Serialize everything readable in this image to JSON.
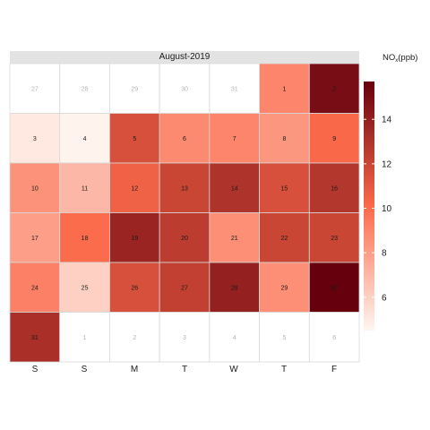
{
  "chart_data": {
    "type": "heatmap",
    "title": "August-2019",
    "legend_title_main": "NO",
    "legend_title_sub": "x",
    "legend_title_unit": "(ppb)",
    "weekdays": [
      "S",
      "S",
      "M",
      "T",
      "W",
      "T",
      "F"
    ],
    "colorbar": {
      "min": 4.5,
      "max": 15.7,
      "ticks": [
        6,
        8,
        10,
        12,
        14
      ]
    },
    "colors": {
      "low": "#fff5f0",
      "mid": "#fb6a4a",
      "high": "#67000d",
      "empty": "#ffffff",
      "grid": "#d9d9d9"
    },
    "weeks": [
      [
        {
          "label": "27",
          "value": null,
          "in_month": false
        },
        {
          "label": "28",
          "value": null,
          "in_month": false
        },
        {
          "label": "29",
          "value": null,
          "in_month": false
        },
        {
          "label": "30",
          "value": null,
          "in_month": false
        },
        {
          "label": "31",
          "value": null,
          "in_month": false
        },
        {
          "label": "1",
          "value": 9.0,
          "in_month": true
        },
        {
          "label": "2",
          "value": 15.0,
          "in_month": true
        }
      ],
      [
        {
          "label": "3",
          "value": 5.0,
          "in_month": true
        },
        {
          "label": "4",
          "value": 4.6,
          "in_month": true
        },
        {
          "label": "5",
          "value": 11.5,
          "in_month": true
        },
        {
          "label": "6",
          "value": 8.8,
          "in_month": true
        },
        {
          "label": "7",
          "value": 9.0,
          "in_month": true
        },
        {
          "label": "8",
          "value": 8.3,
          "in_month": true
        },
        {
          "label": "9",
          "value": 10.2,
          "in_month": true
        }
      ],
      [
        {
          "label": "10",
          "value": 8.5,
          "in_month": true
        },
        {
          "label": "11",
          "value": 7.0,
          "in_month": true
        },
        {
          "label": "12",
          "value": 10.5,
          "in_month": true
        },
        {
          "label": "13",
          "value": 12.0,
          "in_month": true
        },
        {
          "label": "14",
          "value": 13.0,
          "in_month": true
        },
        {
          "label": "15",
          "value": 11.5,
          "in_month": true
        },
        {
          "label": "16",
          "value": 12.8,
          "in_month": true
        }
      ],
      [
        {
          "label": "17",
          "value": 8.0,
          "in_month": true
        },
        {
          "label": "18",
          "value": 10.0,
          "in_month": true
        },
        {
          "label": "19",
          "value": 13.8,
          "in_month": true
        },
        {
          "label": "20",
          "value": 12.5,
          "in_month": true
        },
        {
          "label": "21",
          "value": 8.6,
          "in_month": true
        },
        {
          "label": "22",
          "value": 12.0,
          "in_month": true
        },
        {
          "label": "23",
          "value": 12.0,
          "in_month": true
        }
      ],
      [
        {
          "label": "24",
          "value": 9.2,
          "in_month": true
        },
        {
          "label": "25",
          "value": 6.0,
          "in_month": true
        },
        {
          "label": "26",
          "value": 11.5,
          "in_month": true
        },
        {
          "label": "27",
          "value": 12.3,
          "in_month": true
        },
        {
          "label": "28",
          "value": 14.0,
          "in_month": true
        },
        {
          "label": "29",
          "value": 8.6,
          "in_month": true
        },
        {
          "label": "30",
          "value": 15.7,
          "in_month": true
        }
      ],
      [
        {
          "label": "31",
          "value": 13.2,
          "in_month": true
        },
        {
          "label": "1",
          "value": null,
          "in_month": false
        },
        {
          "label": "2",
          "value": null,
          "in_month": false
        },
        {
          "label": "3",
          "value": null,
          "in_month": false
        },
        {
          "label": "4",
          "value": null,
          "in_month": false
        },
        {
          "label": "5",
          "value": null,
          "in_month": false
        },
        {
          "label": "6",
          "value": null,
          "in_month": false
        }
      ]
    ]
  }
}
